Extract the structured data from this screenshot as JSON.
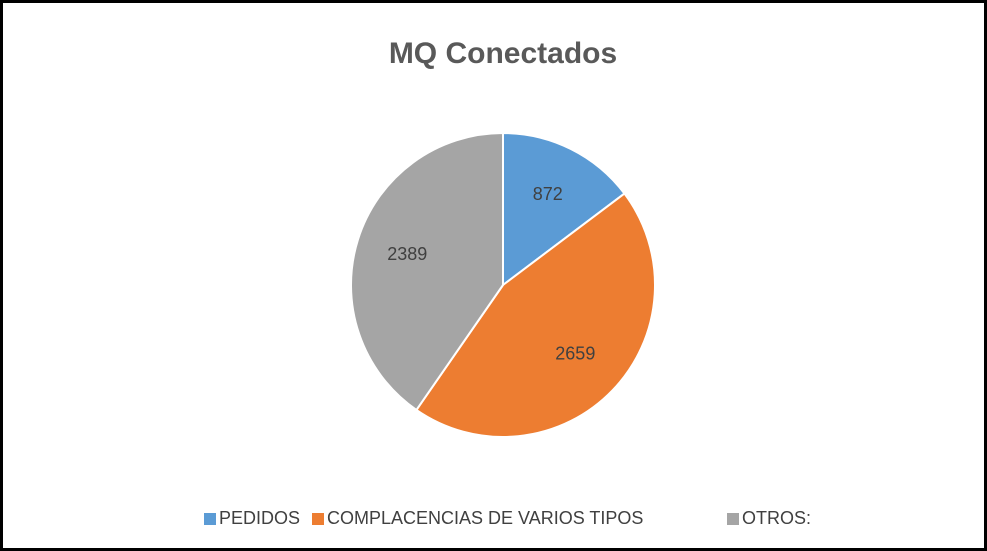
{
  "chart_data": {
    "type": "pie",
    "title": "MQ Conectados",
    "categories": [
      "PEDIDOS",
      "COMPLACENCIAS DE VARIOS TIPOS",
      "OTROS:"
    ],
    "values": [
      872,
      2659,
      2389
    ],
    "colors": [
      "#5b9bd5",
      "#ed7d31",
      "#a5a5a5"
    ],
    "legend": "bottom"
  }
}
